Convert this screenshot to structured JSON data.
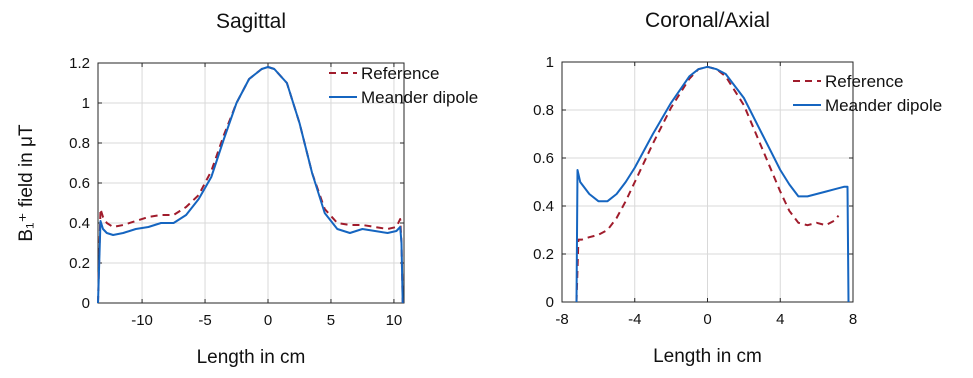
{
  "chart_data": [
    {
      "type": "line",
      "title": "Sagittal",
      "xlabel": "Length in cm",
      "ylabel": "B₁⁺ field in μT",
      "xlim": [
        -13.5,
        10.8
      ],
      "ylim": [
        0,
        1.2
      ],
      "xticks": [
        -10,
        -5,
        0,
        5,
        10
      ],
      "yticks": [
        0,
        0.2,
        0.4,
        0.6,
        0.8,
        1,
        1.2
      ],
      "xtick_labels": [
        "-10",
        "-5",
        "0",
        "5",
        "10"
      ],
      "ytick_labels": [
        "0",
        "0.2",
        "0.4",
        "0.6",
        "0.8",
        "1",
        "1.2"
      ],
      "grid": true,
      "legend_position": "top-right",
      "series": [
        {
          "name": "Reference",
          "style": "dashed",
          "color": "#a01c2c",
          "x": [
            -13.5,
            -13.3,
            -13.1,
            -12.8,
            -12.3,
            -11.5,
            -10.5,
            -9.5,
            -8.5,
            -7.5,
            -6.5,
            -5.5,
            -4.5,
            -3.5,
            -2.5,
            -1.5,
            -0.5,
            0,
            0.5,
            1.5,
            2.5,
            3.5,
            4.5,
            5.5,
            6.5,
            7.5,
            8.5,
            9.5,
            10.2,
            10.5,
            10.6,
            10.7
          ],
          "y": [
            0.0,
            0.47,
            0.43,
            0.4,
            0.38,
            0.39,
            0.41,
            0.43,
            0.44,
            0.44,
            0.48,
            0.54,
            0.66,
            0.84,
            1.0,
            1.12,
            1.17,
            1.18,
            1.17,
            1.1,
            0.9,
            0.65,
            0.47,
            0.4,
            0.39,
            0.39,
            0.38,
            0.37,
            0.38,
            0.42,
            0.3,
            0.0
          ]
        },
        {
          "name": "Meander dipole",
          "style": "solid",
          "color": "#1565c0",
          "x": [
            -13.5,
            -13.3,
            -13.1,
            -12.8,
            -12.3,
            -11.5,
            -10.5,
            -9.5,
            -8.5,
            -7.5,
            -6.5,
            -5.5,
            -4.5,
            -3.5,
            -2.5,
            -1.5,
            -0.5,
            0,
            0.5,
            1.5,
            2.5,
            3.5,
            4.5,
            5.5,
            6.5,
            7.5,
            8.5,
            9.5,
            10.2,
            10.5,
            10.6,
            10.7
          ],
          "y": [
            0.0,
            0.41,
            0.37,
            0.35,
            0.34,
            0.35,
            0.37,
            0.38,
            0.4,
            0.4,
            0.44,
            0.52,
            0.63,
            0.82,
            1.0,
            1.12,
            1.17,
            1.18,
            1.17,
            1.1,
            0.9,
            0.65,
            0.45,
            0.37,
            0.35,
            0.37,
            0.36,
            0.35,
            0.36,
            0.38,
            0.3,
            0.0
          ]
        }
      ]
    },
    {
      "type": "line",
      "title": "Coronal/Axial",
      "xlabel": "Length in cm",
      "ylabel": "",
      "xlim": [
        -8,
        8
      ],
      "ylim": [
        0,
        1
      ],
      "xticks": [
        -8,
        -4,
        0,
        4,
        8
      ],
      "yticks": [
        0,
        0.2,
        0.4,
        0.6,
        0.8,
        1
      ],
      "xtick_labels": [
        "-8",
        "-4",
        "0",
        "4",
        "8"
      ],
      "ytick_labels": [
        "0",
        "0.2",
        "0.4",
        "0.6",
        "0.8",
        "1"
      ],
      "grid": true,
      "legend_position": "top-right",
      "series": [
        {
          "name": "Reference",
          "style": "dashed",
          "color": "#a01c2c",
          "x": [
            -7.2,
            -7.1,
            -6.9,
            -6.5,
            -6.0,
            -5.5,
            -5.0,
            -4.5,
            -4.0,
            -3.0,
            -2.0,
            -1.0,
            -0.5,
            0,
            0.5,
            1.0,
            2.0,
            3.0,
            4.0,
            4.5,
            5.0,
            5.5,
            6.0,
            6.5,
            7.0,
            7.2
          ],
          "y": [
            0.0,
            0.26,
            0.26,
            0.27,
            0.28,
            0.3,
            0.35,
            0.42,
            0.5,
            0.66,
            0.81,
            0.93,
            0.97,
            0.98,
            0.97,
            0.94,
            0.82,
            0.64,
            0.46,
            0.38,
            0.33,
            0.32,
            0.33,
            0.32,
            0.34,
            0.36
          ]
        },
        {
          "name": "Meander dipole",
          "style": "solid",
          "color": "#1565c0",
          "x": [
            -7.2,
            -7.15,
            -7.0,
            -6.5,
            -6.0,
            -5.5,
            -5.0,
            -4.5,
            -4.0,
            -3.0,
            -2.0,
            -1.0,
            -0.5,
            0,
            0.5,
            1.0,
            2.0,
            3.0,
            4.0,
            4.5,
            5.0,
            5.5,
            6.0,
            6.5,
            7.0,
            7.5,
            7.7,
            7.75
          ],
          "y": [
            0.0,
            0.55,
            0.5,
            0.45,
            0.42,
            0.42,
            0.45,
            0.5,
            0.56,
            0.7,
            0.83,
            0.94,
            0.97,
            0.98,
            0.97,
            0.95,
            0.85,
            0.7,
            0.55,
            0.49,
            0.44,
            0.44,
            0.45,
            0.46,
            0.47,
            0.48,
            0.48,
            0.0
          ]
        }
      ]
    }
  ]
}
